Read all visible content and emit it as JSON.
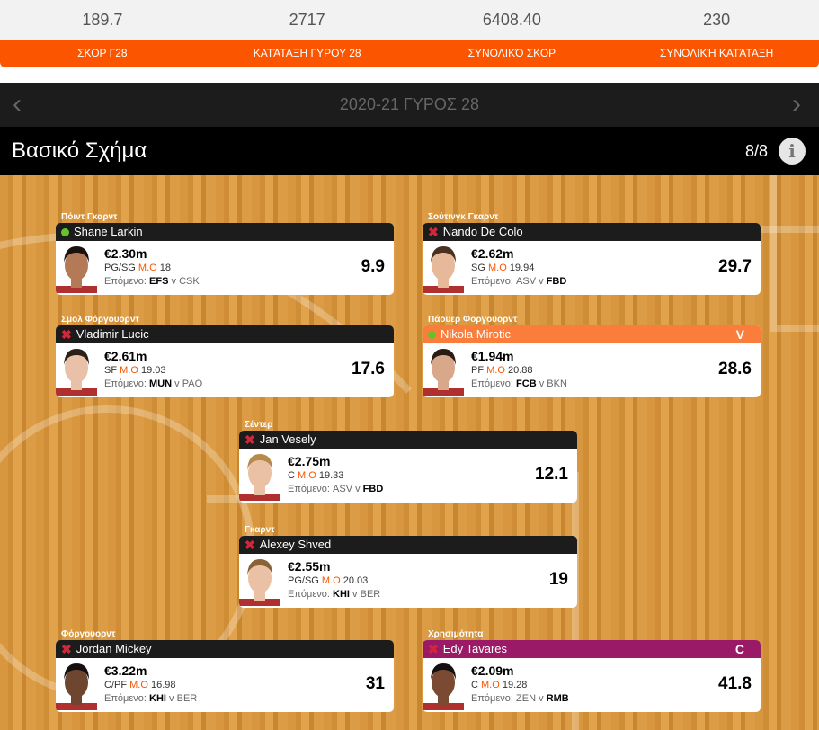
{
  "stats": {
    "values": [
      "189.7",
      "2717",
      "6408.40",
      "230"
    ],
    "labels": [
      "ΣΚΟΡ Γ28",
      "ΚΑΤΆΤΑΞΗ ΓΥΡΟΥ 28",
      "ΣΥΝΟΛΙΚΌ ΣΚΟΡ",
      "ΣΥΝΟΛΙΚΉ ΚΑΤΆΤΑΞΗ"
    ]
  },
  "nav": {
    "title": "2020-21 ΓΥΡΟΣ 28",
    "prev": "‹",
    "next": "›"
  },
  "header": {
    "title": "Βασικό Σχήμα",
    "count": "8/8",
    "info": "i"
  },
  "colors": {
    "accent": "#fb5500",
    "vice": "#fb7d3c",
    "captain": "#9b1a68",
    "available": "#66c12b",
    "unavailable": "#d0283a"
  },
  "mo_label": "M.O",
  "next_label": "Επόμενο:",
  "players": [
    {
      "position": "Πόιντ Γκαρντ",
      "name": "Shane Larkin",
      "status": "available",
      "price": "€2.30m",
      "role": "PG/SG",
      "avg": "18",
      "home": "EFS",
      "away": "CSK",
      "bold": "home",
      "points": "9.9",
      "badge": "",
      "skin": "#b47a55",
      "hair": "#1a1210"
    },
    {
      "position": "Σούτινγκ Γκαρντ",
      "name": "Nando De Colo",
      "status": "unavailable",
      "price": "€2.62m",
      "role": "SG",
      "avg": "19.94",
      "home": "ASV",
      "away": "FBD",
      "bold": "away",
      "points": "29.7",
      "badge": "",
      "skin": "#e8b89a",
      "hair": "#4a3120"
    },
    {
      "position": "Σμολ Φόργουορντ",
      "name": "Vladimir Lucic",
      "status": "unavailable",
      "price": "€2.61m",
      "role": "SF",
      "avg": "19.03",
      "home": "MUN",
      "away": "PAO",
      "bold": "home",
      "points": "17.6",
      "badge": "",
      "skin": "#e9c0a8",
      "hair": "#2b2018"
    },
    {
      "position": "Πάουερ Φοργουορντ",
      "name": "Nikola Mirotic",
      "status": "available",
      "price": "€1.94m",
      "role": "PF",
      "avg": "20.88",
      "home": "FCB",
      "away": "BKN",
      "bold": "home",
      "points": "28.6",
      "badge": "V",
      "skin": "#d9a88a",
      "hair": "#2a1c14"
    },
    {
      "position": "Σέντερ",
      "name": "Jan Vesely",
      "status": "unavailable",
      "price": "€2.75m",
      "role": "C",
      "avg": "19.33",
      "home": "ASV",
      "away": "FBD",
      "bold": "away",
      "points": "12.1",
      "badge": "",
      "skin": "#eac1a4",
      "hair": "#b58a4a"
    },
    {
      "position": "Γκαρντ",
      "name": "Alexey Shved",
      "status": "unavailable",
      "price": "€2.55m",
      "role": "PG/SG",
      "avg": "20.03",
      "home": "KHI",
      "away": "BER",
      "bold": "home",
      "points": "19",
      "badge": "",
      "skin": "#eac1a4",
      "hair": "#8a6236"
    },
    {
      "position": "Φόργουορντ",
      "name": "Jordan Mickey",
      "status": "unavailable",
      "price": "€3.22m",
      "role": "C/PF",
      "avg": "16.98",
      "home": "KHI",
      "away": "BER",
      "bold": "home",
      "points": "31",
      "badge": "",
      "skin": "#6e4630",
      "hair": "#141010"
    },
    {
      "position": "Χρησιμότητα",
      "name": "Edy Tavares",
      "status": "unavailable",
      "price": "€2.09m",
      "role": "C",
      "avg": "19.28",
      "home": "ZEN",
      "away": "RMB",
      "bold": "away",
      "points": "41.8",
      "badge": "C",
      "skin": "#7a4a32",
      "hair": "#141010"
    }
  ]
}
